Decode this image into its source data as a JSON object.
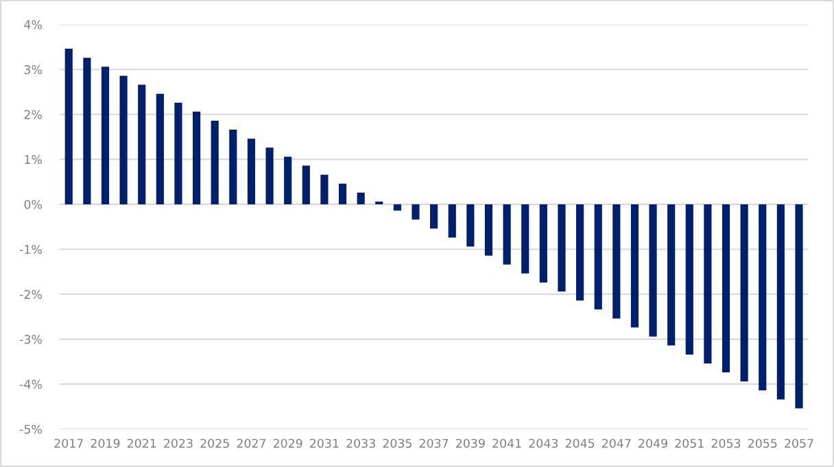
{
  "chart_data": {
    "type": "bar",
    "categories": [
      "2017",
      null,
      "2019",
      null,
      "2021",
      null,
      "2023",
      null,
      "2025",
      null,
      "2027",
      null,
      "2029",
      null,
      "2031",
      null,
      "2033",
      null,
      "2035",
      null,
      "2037",
      null,
      "2039",
      null,
      "2041",
      null,
      "2043",
      null,
      "2045",
      null,
      "2047",
      null,
      "2049",
      null,
      "2051",
      null,
      "2053",
      null,
      "2055",
      null,
      "2057"
    ],
    "values": [
      3.46,
      3.26,
      3.06,
      2.86,
      2.66,
      2.46,
      2.26,
      2.06,
      1.86,
      1.66,
      1.46,
      1.26,
      1.06,
      0.86,
      0.66,
      0.46,
      0.26,
      0.06,
      -0.14,
      -0.34,
      -0.54,
      -0.74,
      -0.94,
      -1.14,
      -1.34,
      -1.54,
      -1.74,
      -1.94,
      -2.14,
      -2.34,
      -2.54,
      -2.74,
      -2.94,
      -3.14,
      -3.34,
      -3.54,
      -3.74,
      -3.94,
      -4.14,
      -4.34,
      -4.54
    ],
    "color": "#00206e",
    "ylim": [
      -5,
      4
    ],
    "yticks": [
      {
        "value": -5,
        "label": "-5%"
      },
      {
        "value": -4,
        "label": "-4%"
      },
      {
        "value": -3,
        "label": "-3%"
      },
      {
        "value": -2,
        "label": "-2%"
      },
      {
        "value": -1,
        "label": "-1%"
      },
      {
        "value": 0,
        "label": "0%"
      },
      {
        "value": 1,
        "label": "1%"
      },
      {
        "value": 2,
        "label": "2%"
      },
      {
        "value": 3,
        "label": "3%"
      },
      {
        "value": 4,
        "label": "4%"
      }
    ],
    "grid": "y"
  }
}
